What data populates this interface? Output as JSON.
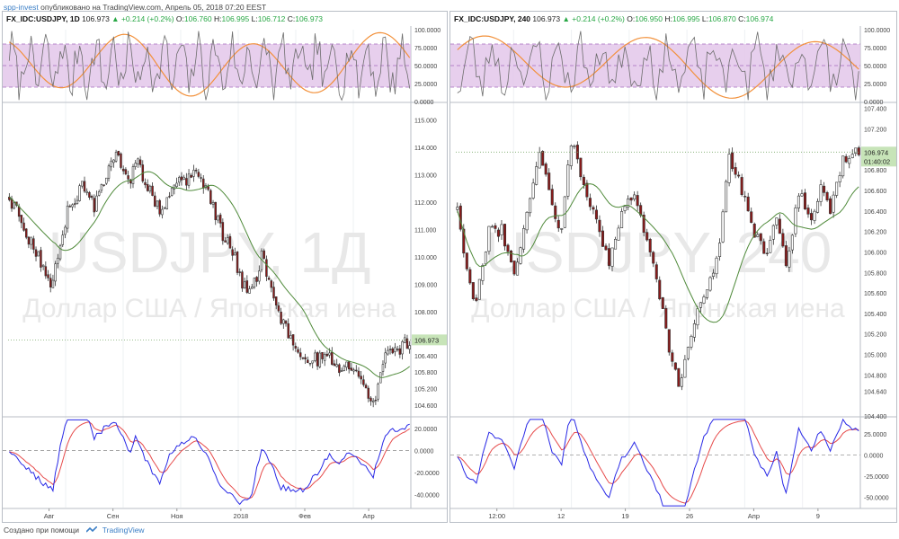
{
  "header": {
    "author": "spp-invest",
    "published": "опубликовано на TradingView.com, Апрель 05, 2018 07:20 EEST"
  },
  "footer": {
    "created_with": "Создано при помощи",
    "brand": "TradingView"
  },
  "colors": {
    "candle_up": "#ffffff",
    "candle_down": "#8b1a1a",
    "candle_border": "#333333",
    "sma": "#4f8a3a",
    "rsi_band_fill": "#e3c7ea",
    "rsi_band_line": "#a46bbd",
    "rsi_line": "#6d6d6d",
    "rsi_slow": "#f2903a",
    "macd_blue": "#2828e6",
    "macd_red": "#e64a4a",
    "price_label": "#c7e4b8",
    "up_green": "#28a745"
  },
  "chart_data": [
    {
      "type": "candlestick",
      "panel": "left",
      "info": {
        "symbol": "FX_IDC:USDJPY, 1D",
        "last": "106.973",
        "change": "▲ +0.214 (+0.2%)",
        "ohlc": [
          {
            "k": "O:",
            "v": "106.760"
          },
          {
            "k": "H:",
            "v": "106.995"
          },
          {
            "k": "L:",
            "v": "106.712"
          },
          {
            "k": "C:",
            "v": "106.973"
          }
        ]
      },
      "watermark_big": "USDJPY, 1Д",
      "watermark_sub": "Доллар США / Японская иена",
      "price_label": "106.973",
      "price_axis_ticks": [
        "115.000",
        "114.000",
        "113.000",
        "112.000",
        "111.000",
        "110.000",
        "109.000",
        "108.000",
        "106.400",
        "105.800",
        "105.200",
        "104.600"
      ],
      "rsi_ticks": [
        "100.0000",
        "75.0000",
        "50.0000",
        "25.0000",
        "0.0000"
      ],
      "macd_ticks": [
        "20.0000",
        "0.0000",
        "-20.0000",
        "-40.0000"
      ],
      "x_ticks": [
        "Авг",
        "Сен",
        "Ноя",
        "2018",
        "Фев",
        "Апр"
      ],
      "ylim": [
        104.2,
        115.6
      ],
      "candles": 166,
      "candle_anchors": [
        [
          0,
          112.2
        ],
        [
          6,
          111.1
        ],
        [
          10,
          110.3
        ],
        [
          14,
          109.6
        ],
        [
          18,
          109.0
        ],
        [
          20,
          110.0
        ],
        [
          24,
          111.7
        ],
        [
          30,
          112.6
        ],
        [
          35,
          111.8
        ],
        [
          40,
          113.0
        ],
        [
          44,
          113.7
        ],
        [
          50,
          112.7
        ],
        [
          52,
          113.5
        ],
        [
          57,
          112.6
        ],
        [
          62,
          111.6
        ],
        [
          66,
          112.4
        ],
        [
          70,
          112.7
        ],
        [
          76,
          113.0
        ],
        [
          82,
          112.4
        ],
        [
          88,
          110.8
        ],
        [
          92,
          110.2
        ],
        [
          96,
          109.1
        ],
        [
          100,
          108.7
        ],
        [
          104,
          110.0
        ],
        [
          108,
          109.0
        ],
        [
          112,
          107.6
        ],
        [
          118,
          106.8
        ],
        [
          122,
          106.4
        ],
        [
          127,
          106.2
        ],
        [
          132,
          106.4
        ],
        [
          136,
          105.8
        ],
        [
          140,
          106.1
        ],
        [
          145,
          105.6
        ],
        [
          150,
          104.7
        ],
        [
          155,
          106.3
        ],
        [
          160,
          106.6
        ],
        [
          165,
          106.97
        ]
      ],
      "rsi_ylim": [
        0,
        100
      ],
      "macd_ylim": [
        -52,
        30
      ]
    },
    {
      "type": "candlestick",
      "panel": "right",
      "info": {
        "symbol": "FX_IDC:USDJPY, 240",
        "last": "106.973",
        "change": "▲ +0.214 (+0.2%)",
        "ohlc": [
          {
            "k": "O:",
            "v": "106.950"
          },
          {
            "k": "H:",
            "v": "106.995"
          },
          {
            "k": "L:",
            "v": "106.870"
          },
          {
            "k": "C:",
            "v": "106.974"
          }
        ]
      },
      "watermark_big": "USDJPY, 240",
      "watermark_sub": "Доллар США / Японская иена",
      "price_label": "106.974",
      "price_label_2": "01:40:02",
      "price_axis_ticks": [
        "107.400",
        "107.200",
        "106.800",
        "106.600",
        "106.400",
        "106.200",
        "106.000",
        "105.800",
        "105.600",
        "105.400",
        "105.200",
        "105.000",
        "104.800",
        "104.640",
        "104.400"
      ],
      "rsi_ticks": [
        "100.0000",
        "75.0000",
        "50.0000",
        "25.0000",
        "0.0000"
      ],
      "macd_ticks": [
        "25.0000",
        "0.0000",
        "-25.0000",
        "-50.0000"
      ],
      "x_ticks": [
        "12:00",
        "12",
        "19",
        "26",
        "Апр",
        "9"
      ],
      "ylim": [
        104.4,
        107.45
      ],
      "candles": 128,
      "candle_anchors": [
        [
          0,
          106.4
        ],
        [
          3,
          105.8
        ],
        [
          6,
          105.5
        ],
        [
          10,
          106.2
        ],
        [
          14,
          106.2
        ],
        [
          18,
          105.8
        ],
        [
          22,
          106.4
        ],
        [
          26,
          107.0
        ],
        [
          30,
          106.4
        ],
        [
          33,
          106.2
        ],
        [
          36,
          107.1
        ],
        [
          40,
          106.7
        ],
        [
          44,
          106.3
        ],
        [
          48,
          105.9
        ],
        [
          52,
          106.4
        ],
        [
          56,
          106.6
        ],
        [
          60,
          106.1
        ],
        [
          64,
          105.6
        ],
        [
          67,
          105.0
        ],
        [
          70,
          104.7
        ],
        [
          74,
          105.2
        ],
        [
          78,
          105.6
        ],
        [
          82,
          105.9
        ],
        [
          86,
          106.9
        ],
        [
          90,
          106.6
        ],
        [
          94,
          106.2
        ],
        [
          98,
          106.0
        ],
        [
          101,
          106.4
        ],
        [
          104,
          105.8
        ],
        [
          108,
          106.6
        ],
        [
          112,
          106.3
        ],
        [
          115,
          106.6
        ],
        [
          118,
          106.4
        ],
        [
          122,
          106.9
        ],
        [
          127,
          106.97
        ]
      ],
      "rsi_ylim": [
        0,
        100
      ],
      "macd_ylim": [
        -62,
        44
      ]
    }
  ]
}
